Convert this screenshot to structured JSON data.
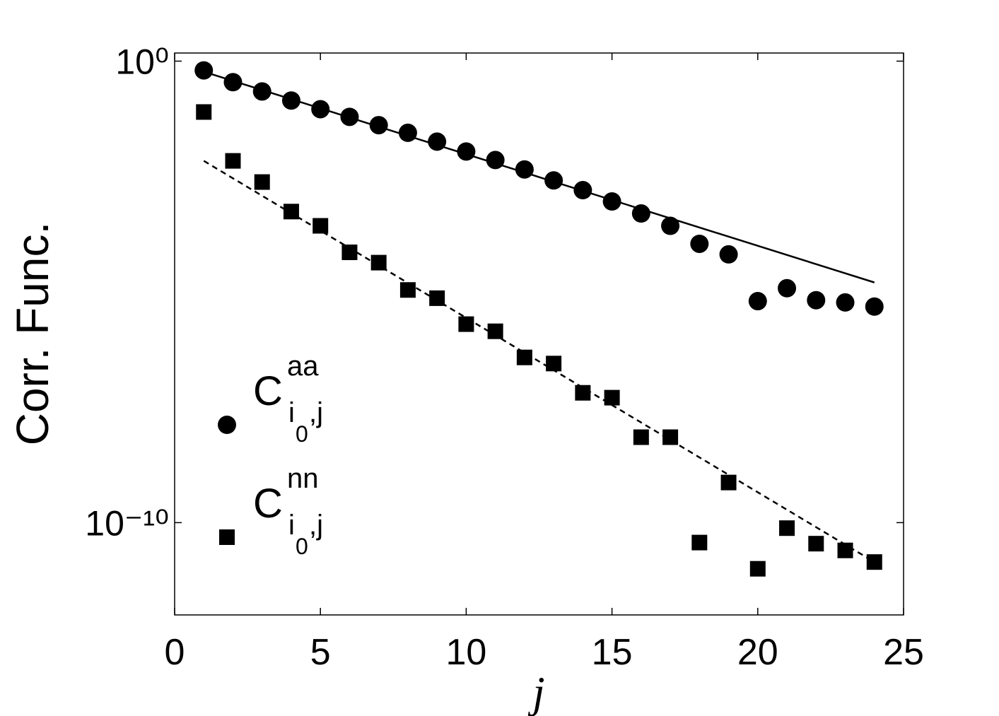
{
  "chart_data": {
    "type": "scatter",
    "xlabel": "j",
    "ylabel": "Corr. Func.",
    "x": [
      1,
      2,
      3,
      4,
      5,
      6,
      7,
      8,
      9,
      10,
      11,
      12,
      13,
      14,
      15,
      16,
      17,
      18,
      19,
      20,
      21,
      22,
      23,
      24
    ],
    "series": [
      {
        "name": "C",
        "name_sup": "aa",
        "name_sub": "i",
        "name_sub_sub": "0",
        "name_sub_tail": ",j",
        "marker": "circle",
        "color": "#000000",
        "values": [
          0.63,
          0.35,
          0.22,
          0.14,
          0.091,
          0.062,
          0.041,
          0.028,
          0.018,
          0.011,
          0.0072,
          0.0045,
          0.0026,
          0.0016,
          0.00091,
          0.0005,
          0.00027,
          0.00011,
          6.5e-05,
          6.3e-06,
          1.2e-05,
          6.6e-06,
          5.9e-06,
          4.8e-06
        ]
      },
      {
        "name": "C",
        "name_sup": "nn",
        "name_sub": "i",
        "name_sub_sub": "0",
        "name_sub_tail": ",j",
        "marker": "square",
        "color": "#000000",
        "values": [
          0.079,
          0.0069,
          0.0024,
          0.00055,
          0.00027,
          7.2e-05,
          4.3e-05,
          1.1e-05,
          7.3e-06,
          2e-06,
          1.4e-06,
          3.8e-07,
          2.8e-07,
          6.5e-08,
          5.1e-08,
          7.1e-09,
          7.1e-09,
          3.7e-11,
          7.4e-10,
          1e-11,
          7.6e-11,
          3.5e-11,
          2.5e-11,
          1.4e-11
        ]
      }
    ],
    "fit_lines": [
      {
        "x": [
          1,
          24
        ],
        "values": [
          0.59,
          1.6e-05
        ],
        "dashed": false,
        "color": "#000000"
      },
      {
        "x": [
          1,
          24
        ],
        "values": [
          0.0069,
          1.4e-11
        ],
        "dashed": true,
        "color": "#000000"
      }
    ],
    "xlim": [
      0,
      25
    ],
    "xticks": [
      0,
      5,
      10,
      15,
      20,
      25
    ],
    "ylim": [
      1e-12,
      1.5
    ],
    "yscale": "log",
    "yticks": [
      {
        "value": 1,
        "label": "10⁰"
      },
      {
        "value": 1e-10,
        "label": "10⁻¹⁰"
      }
    ],
    "grid": false
  }
}
